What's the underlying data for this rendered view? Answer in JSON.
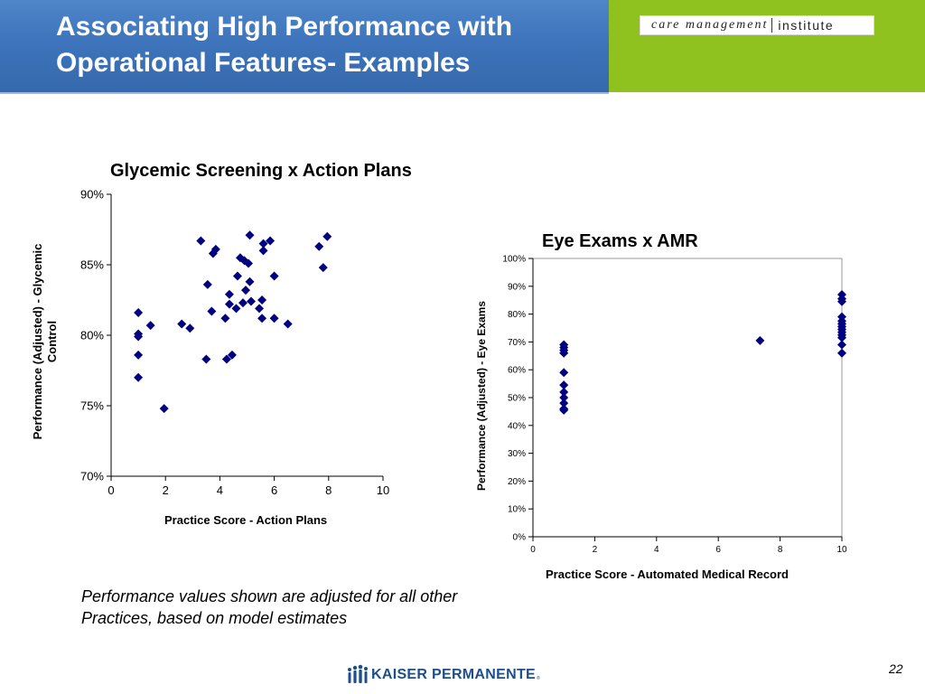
{
  "slide": {
    "title": "Associating High Performance with Operational Features- Examples",
    "logo_left": "care management",
    "logo_right": "institute",
    "note": "Performance values shown are adjusted for all other Practices, based on model estimates",
    "footer_logo": "KAISER PERMANENTE",
    "footer_mark": "®",
    "page_number": "22",
    "colors": {
      "header_blue": "#3d74bb",
      "header_green": "#8fc21f",
      "marker": "#000080"
    }
  },
  "chart_data": [
    {
      "type": "scatter",
      "title": "Glycemic Screening x Action Plans",
      "xlabel": "Practice Score - Action Plans",
      "ylabel": "Performance (Adjusted) - Glycemic Control",
      "xlim": [
        0,
        10
      ],
      "ylim": [
        0.7,
        0.9
      ],
      "xticks": [
        "0",
        "2",
        "4",
        "6",
        "8",
        "10"
      ],
      "yticks": [
        "70%",
        "75%",
        "80%",
        "85%",
        "90%"
      ],
      "grid": false,
      "series": [
        {
          "name": "Practices",
          "points": [
            [
              1.0,
              0.816
            ],
            [
              1.0,
              0.801
            ],
            [
              1.0,
              0.799
            ],
            [
              1.0,
              0.786
            ],
            [
              1.0,
              0.77
            ],
            [
              1.45,
              0.807
            ],
            [
              1.95,
              0.748
            ],
            [
              2.6,
              0.808
            ],
            [
              2.9,
              0.805
            ],
            [
              3.3,
              0.867
            ],
            [
              3.5,
              0.783
            ],
            [
              3.55,
              0.836
            ],
            [
              3.7,
              0.817
            ],
            [
              3.75,
              0.858
            ],
            [
              3.85,
              0.861
            ],
            [
              4.2,
              0.812
            ],
            [
              4.25,
              0.783
            ],
            [
              4.35,
              0.822
            ],
            [
              4.35,
              0.829
            ],
            [
              4.45,
              0.786
            ],
            [
              4.6,
              0.819
            ],
            [
              4.65,
              0.842
            ],
            [
              4.75,
              0.855
            ],
            [
              4.85,
              0.823
            ],
            [
              4.9,
              0.853
            ],
            [
              4.95,
              0.832
            ],
            [
              5.05,
              0.851
            ],
            [
              5.1,
              0.871
            ],
            [
              5.1,
              0.838
            ],
            [
              5.15,
              0.824
            ],
            [
              5.45,
              0.819
            ],
            [
              5.55,
              0.825
            ],
            [
              5.55,
              0.812
            ],
            [
              5.6,
              0.865
            ],
            [
              5.6,
              0.86
            ],
            [
              5.85,
              0.867
            ],
            [
              6.0,
              0.842
            ],
            [
              6.0,
              0.812
            ],
            [
              6.5,
              0.808
            ],
            [
              7.65,
              0.863
            ],
            [
              7.8,
              0.848
            ],
            [
              7.95,
              0.87
            ]
          ]
        }
      ]
    },
    {
      "type": "scatter",
      "title": "Eye Exams x AMR",
      "xlabel": "Practice Score - Automated Medical Record",
      "ylabel": "Performance (Adjusted) - Eye Exams",
      "xlim": [
        0,
        10
      ],
      "ylim": [
        0,
        1.0
      ],
      "xticks": [
        "0",
        "2",
        "4",
        "6",
        "8",
        "10"
      ],
      "yticks": [
        "0%",
        "10%",
        "20%",
        "30%",
        "40%",
        "50%",
        "60%",
        "70%",
        "80%",
        "90%",
        "100%"
      ],
      "grid": false,
      "series": [
        {
          "name": "Practices",
          "points": [
            [
              1,
              0.69
            ],
            [
              1,
              0.68
            ],
            [
              1,
              0.67
            ],
            [
              1,
              0.66
            ],
            [
              1,
              0.59
            ],
            [
              1,
              0.545
            ],
            [
              1,
              0.52
            ],
            [
              1,
              0.5
            ],
            [
              1,
              0.48
            ],
            [
              1,
              0.46
            ],
            [
              1,
              0.455
            ],
            [
              7.35,
              0.705
            ],
            [
              10,
              0.87
            ],
            [
              10,
              0.855
            ],
            [
              10,
              0.845
            ],
            [
              10,
              0.79
            ],
            [
              10,
              0.775
            ],
            [
              10,
              0.765
            ],
            [
              10,
              0.755
            ],
            [
              10,
              0.745
            ],
            [
              10,
              0.735
            ],
            [
              10,
              0.725
            ],
            [
              10,
              0.715
            ],
            [
              10,
              0.69
            ],
            [
              10,
              0.66
            ]
          ]
        }
      ]
    }
  ]
}
